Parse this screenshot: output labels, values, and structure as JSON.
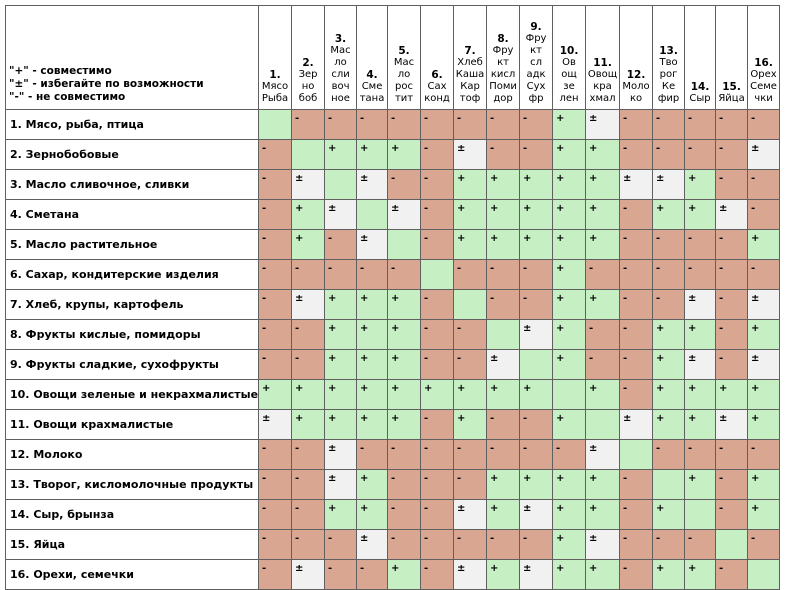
{
  "legend": {
    "plus": "\"+\" - совместимо",
    "pm": "\"±\" - избегайте по возможности",
    "minus": "\"-\" - не совместимо"
  },
  "colors": {
    "plus": "#c6efc4",
    "minus": "#d9a691",
    "pm": "#f1f1f1"
  },
  "columns": [
    {
      "num": "1.",
      "name": "Мясо\nРыба"
    },
    {
      "num": "2.",
      "name": "Зер\nно\nбоб"
    },
    {
      "num": "3.",
      "name": "Мас\nло\nсли\nвоч\nное"
    },
    {
      "num": "4.",
      "name": "Сме\nтана"
    },
    {
      "num": "5.",
      "name": "Мас\nло\nрос\nтит"
    },
    {
      "num": "6.",
      "name": "Сах\nконд"
    },
    {
      "num": "7.",
      "name": "Хлеб\nКаша\nКар\nтоф"
    },
    {
      "num": "8.",
      "name": "Фру\nкт\nкисл\nПоми\nдор"
    },
    {
      "num": "9.",
      "name": "Фру\nкт\nсл\nадк\nСух\nфр"
    },
    {
      "num": "10.",
      "name": "Ов\nощ\nзе\nлен"
    },
    {
      "num": "11.",
      "name": "Овощ\nкра\nхмал"
    },
    {
      "num": "12.",
      "name": "Моло\nко"
    },
    {
      "num": "13.",
      "name": "Тво\nрог\nКе\nфир"
    },
    {
      "num": "14.",
      "name": "Сыр"
    },
    {
      "num": "15.",
      "name": "Яйца"
    },
    {
      "num": "16.",
      "name": "Орех\nСеме\nчки"
    }
  ],
  "rows": [
    {
      "label": "1. Мясо, рыба, птица",
      "cells": [
        "",
        "-",
        "-",
        "-",
        "-",
        "-",
        "-",
        "-",
        "-",
        "+",
        "±",
        "-",
        "-",
        "-",
        "-",
        "-"
      ]
    },
    {
      "label": "2. Зернобобовые",
      "cells": [
        "-",
        "",
        "+",
        "+",
        "+",
        "-",
        "±",
        "-",
        "-",
        "+",
        "+",
        "-",
        "-",
        "-",
        "-",
        "±"
      ]
    },
    {
      "label": "3. Масло сливочное, сливки",
      "cells": [
        "-",
        "±",
        "",
        "±",
        "-",
        "-",
        "+",
        "+",
        "+",
        "+",
        "+",
        "±",
        "±",
        "+",
        "-",
        "-"
      ]
    },
    {
      "label": "4. Сметана",
      "cells": [
        "-",
        "+",
        "±",
        "",
        "±",
        "-",
        "+",
        "+",
        "+",
        "+",
        "+",
        "-",
        "+",
        "+",
        "±",
        "-"
      ]
    },
    {
      "label": "5. Масло растительное",
      "cells": [
        "-",
        "+",
        "-",
        "±",
        "",
        "-",
        "+",
        "+",
        "+",
        "+",
        "+",
        "-",
        "-",
        "-",
        "-",
        "+"
      ]
    },
    {
      "label": "6. Сахар, кондитерские изделия",
      "cells": [
        "-",
        "-",
        "-",
        "-",
        "-",
        "",
        "-",
        "-",
        "-",
        "+",
        "-",
        "-",
        "-",
        "-",
        "-",
        "-"
      ]
    },
    {
      "label": "7. Хлеб, крупы, картофель",
      "cells": [
        "-",
        "±",
        "+",
        "+",
        "+",
        "-",
        "",
        "-",
        "-",
        "+",
        "+",
        "-",
        "-",
        "±",
        "-",
        "±"
      ]
    },
    {
      "label": "8. Фрукты кислые, помидоры",
      "cells": [
        "-",
        "-",
        "+",
        "+",
        "+",
        "-",
        "-",
        "",
        "±",
        "+",
        "-",
        "-",
        "+",
        "+",
        "-",
        "+"
      ]
    },
    {
      "label": "9. Фрукты сладкие, сухофрукты",
      "cells": [
        "-",
        "-",
        "+",
        "+",
        "+",
        "-",
        "-",
        "±",
        "",
        "+",
        "-",
        "-",
        "+",
        "±",
        "-",
        "±"
      ]
    },
    {
      "label": "10. Овощи зеленые и некрахмалистые",
      "cells": [
        "+",
        "+",
        "+",
        "+",
        "+",
        "+",
        "+",
        "+",
        "+",
        "",
        "+",
        "-",
        "+",
        "+",
        "+",
        "+"
      ]
    },
    {
      "label": "11. Овощи крахмалистые",
      "cells": [
        "±",
        "+",
        "+",
        "+",
        "+",
        "-",
        "+",
        "-",
        "-",
        "+",
        "",
        "±",
        "+",
        "+",
        "±",
        "+"
      ]
    },
    {
      "label": "12. Молоко",
      "cells": [
        "-",
        "-",
        "±",
        "-",
        "-",
        "-",
        "-",
        "-",
        "-",
        "-",
        "±",
        "",
        "-",
        "-",
        "-",
        "-"
      ]
    },
    {
      "label": "13. Творог, кисломолочные продукты",
      "cells": [
        "-",
        "-",
        "±",
        "+",
        "-",
        "-",
        "-",
        "+",
        "+",
        "+",
        "+",
        "-",
        "",
        "+",
        "-",
        "+"
      ]
    },
    {
      "label": "14. Сыр, брынза",
      "cells": [
        "-",
        "-",
        "+",
        "+",
        "-",
        "-",
        "±",
        "+",
        "±",
        "+",
        "+",
        "-",
        "+",
        "",
        "-",
        "+"
      ]
    },
    {
      "label": "15. Яйца",
      "cells": [
        "-",
        "-",
        "-",
        "±",
        "-",
        "-",
        "-",
        "-",
        "-",
        "+",
        "±",
        "-",
        "-",
        "-",
        "",
        "-"
      ]
    },
    {
      "label": "16. Орехи, семечки",
      "cells": [
        "-",
        "±",
        "-",
        "-",
        "+",
        "-",
        "±",
        "+",
        "±",
        "+",
        "+",
        "-",
        "+",
        "+",
        "-",
        ""
      ]
    }
  ]
}
